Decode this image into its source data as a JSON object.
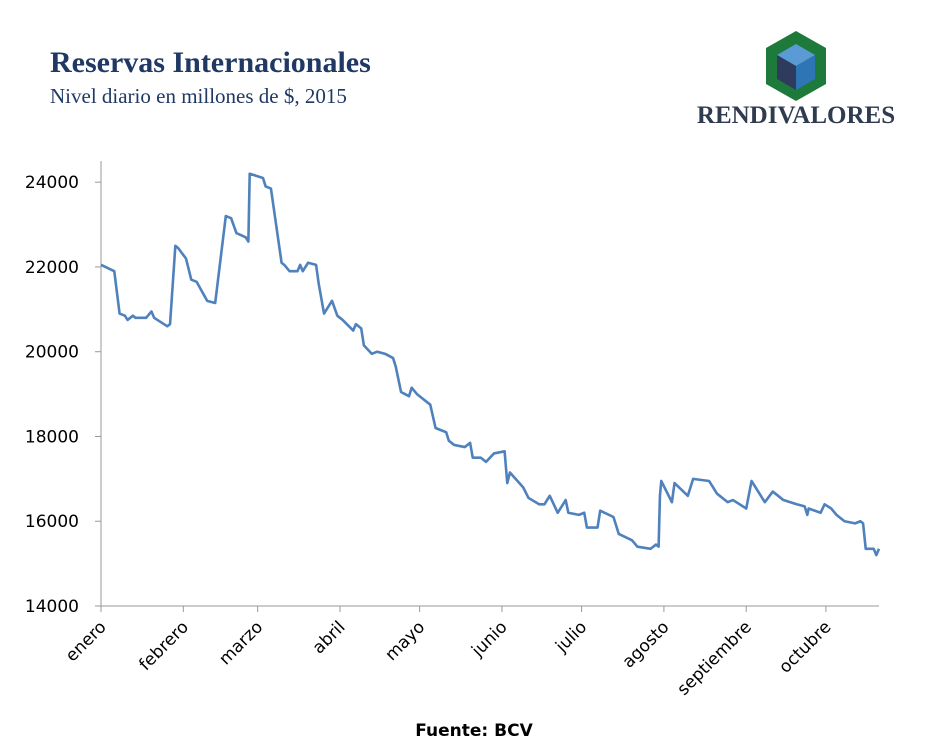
{
  "brand": "RENDIVALORES",
  "chart_data": {
    "type": "line",
    "title": "Reservas Internacionales",
    "subtitle": "Nivel diario en millones de $, 2015",
    "source": "Fuente: BCV",
    "x": [
      0,
      5,
      7,
      9,
      10,
      12,
      13,
      17,
      19,
      20,
      25,
      26,
      28,
      29,
      32,
      34,
      36,
      40,
      43,
      47,
      49,
      51,
      54.5,
      55.5,
      56,
      61,
      62,
      64,
      68,
      69,
      71,
      74,
      75,
      76,
      78,
      81,
      82,
      84,
      87,
      89,
      91,
      95,
      96,
      98,
      99,
      102,
      104,
      107,
      110,
      111,
      113,
      116,
      117,
      119,
      124,
      126,
      130,
      131,
      133,
      137,
      139,
      140,
      143,
      145,
      148,
      152,
      153,
      154,
      159,
      161,
      165,
      167,
      169,
      172,
      175,
      176,
      180,
      182,
      183,
      187,
      188,
      193,
      195,
      200,
      202,
      207,
      209,
      210,
      210.5,
      211,
      215,
      216,
      221,
      223,
      229,
      230,
      232,
      236,
      238,
      243,
      245,
      247,
      250,
      253,
      257,
      262,
      265,
      266,
      266.5,
      271,
      272.5,
      275,
      277,
      280,
      284,
      286,
      287,
      288,
      291,
      292,
      293
    ],
    "series": [
      {
        "name": "Reservas",
        "color": "#4f81bd",
        "values": [
          22050,
          21900,
          20900,
          20850,
          20750,
          20850,
          20800,
          20800,
          20950,
          20800,
          20600,
          20650,
          22500,
          22450,
          22200,
          21700,
          21650,
          21200,
          21150,
          23200,
          23150,
          22800,
          22700,
          22600,
          24200,
          24100,
          23900,
          23850,
          22100,
          22050,
          21900,
          21900,
          22050,
          21900,
          22100,
          22050,
          21600,
          20900,
          21200,
          20850,
          20750,
          20500,
          20650,
          20550,
          20150,
          19950,
          20000,
          19950,
          19850,
          19650,
          19050,
          18950,
          19150,
          19000,
          18750,
          18200,
          18100,
          17900,
          17800,
          17750,
          17850,
          17500,
          17500,
          17400,
          17600,
          17650,
          16900,
          17150,
          16800,
          16550,
          16400,
          16400,
          16600,
          16200,
          16500,
          16200,
          16150,
          16200,
          15850,
          15850,
          16250,
          16100,
          15700,
          15550,
          15400,
          15350,
          15450,
          15400,
          16600,
          16950,
          16450,
          16900,
          16600,
          17000,
          16950,
          16850,
          16650,
          16450,
          16500,
          16300,
          16950,
          16750,
          16450,
          16700,
          16500,
          16400,
          16350,
          16150,
          16300,
          16200,
          16400,
          16300,
          16150,
          16000,
          15950,
          16000,
          15950,
          15350,
          15350,
          15200,
          15350
        ]
      }
    ],
    "xlim": [
      0,
      293
    ],
    "xticks": [
      {
        "value": 0,
        "label": "enero"
      },
      {
        "value": 31,
        "label": "febrero"
      },
      {
        "value": 59,
        "label": "marzo"
      },
      {
        "value": 90,
        "label": "abril"
      },
      {
        "value": 120,
        "label": "mayo"
      },
      {
        "value": 151,
        "label": "junio"
      },
      {
        "value": 181,
        "label": "julio"
      },
      {
        "value": 212,
        "label": "agosto"
      },
      {
        "value": 243,
        "label": "septiembre"
      },
      {
        "value": 273,
        "label": "octubre"
      }
    ],
    "ylim": [
      14000,
      24500
    ],
    "yticks": [
      14000,
      16000,
      18000,
      20000,
      22000,
      24000
    ],
    "grid": false
  }
}
